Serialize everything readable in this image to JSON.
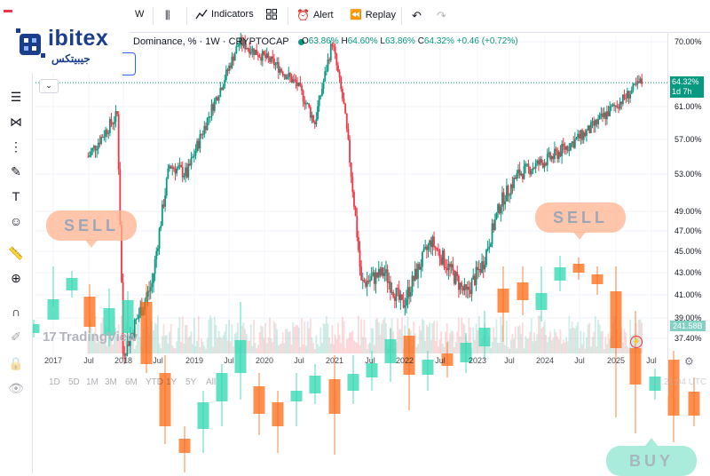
{
  "toolbar": {
    "interval": "W",
    "indicators_label": "Indicators",
    "alert_label": "Alert",
    "replay_label": "Replay"
  },
  "brand": {
    "name": "ibitex",
    "name_fa": "جيبيتكس"
  },
  "legend": {
    "symbol": "Dominance, % · 1W · CRYPTOCAP",
    "open_label": "O",
    "open": "63.86%",
    "high_label": "H",
    "high": "64.60%",
    "low_label": "L",
    "low": "63.86%",
    "close_label": "C",
    "close": "64.32%",
    "change": "+0.46 (+0.72%)"
  },
  "price_tag": {
    "value": "64.32%",
    "countdown": "1d 7h",
    "volume_tag": "241.58B",
    "color": "#089981"
  },
  "watermark": "TradingView",
  "ranges": [
    "1D",
    "5D",
    "1M",
    "3M",
    "6M",
    "YTD",
    "1Y",
    "5Y",
    "All"
  ],
  "utc_clock": "12:21:04 UTC",
  "overlay_annotations": {
    "sell_left": "SELL",
    "sell_right": "SELL",
    "buy": "BUY"
  },
  "colors": {
    "up": "#089981",
    "down": "#f23645",
    "overlay_up": "#2ed8b0",
    "overlay_down": "#ff6a13",
    "sell_bubble": "#ffb48f",
    "buy_bubble": "#8ee6cf"
  },
  "chart_data": {
    "type": "candlestick",
    "title": "Dominance, % · 1W · CRYPTOCAP",
    "y_axis": {
      "ticks": [
        "70.00%",
        "61.00%",
        "57.00%",
        "53.00%",
        "49.00%",
        "47.00%",
        "45.00%",
        "43.00%",
        "41.00%",
        "39.00%",
        "37.40%"
      ],
      "ylim": [
        36,
        71
      ]
    },
    "x_axis": {
      "ticks": [
        "2017",
        "Jul",
        "2018",
        "Jul",
        "2019",
        "Jul",
        "2020",
        "Jul",
        "2021",
        "Jul",
        "2022",
        "Jul",
        "2023",
        "Jul",
        "2024",
        "Jul",
        "2025",
        "Jul"
      ]
    },
    "series_close_path": [
      {
        "t": "2017-07",
        "v": 55
      },
      {
        "t": "2017-12",
        "v": 60
      },
      {
        "t": "2018-01",
        "v": 36
      },
      {
        "t": "2018-06",
        "v": 42
      },
      {
        "t": "2018-09",
        "v": 54
      },
      {
        "t": "2018-12",
        "v": 53
      },
      {
        "t": "2019-06",
        "v": 64
      },
      {
        "t": "2019-09",
        "v": 70
      },
      {
        "t": "2020-03",
        "v": 67
      },
      {
        "t": "2020-07",
        "v": 64
      },
      {
        "t": "2020-10",
        "v": 59
      },
      {
        "t": "2021-01",
        "v": 70
      },
      {
        "t": "2021-03",
        "v": 61
      },
      {
        "t": "2021-06",
        "v": 42
      },
      {
        "t": "2021-10",
        "v": 43
      },
      {
        "t": "2022-01",
        "v": 40
      },
      {
        "t": "2022-06",
        "v": 46
      },
      {
        "t": "2022-12",
        "v": 41
      },
      {
        "t": "2023-03",
        "v": 44
      },
      {
        "t": "2023-06",
        "v": 50
      },
      {
        "t": "2023-09",
        "v": 53
      },
      {
        "t": "2024-03",
        "v": 55
      },
      {
        "t": "2024-09",
        "v": 58
      },
      {
        "t": "2024-12",
        "v": 60
      },
      {
        "t": "2025-03",
        "v": 62
      },
      {
        "t": "2025-06",
        "v": 64.32
      }
    ],
    "last": {
      "open": 63.86,
      "high": 64.6,
      "low": 63.86,
      "close": 64.32
    }
  }
}
